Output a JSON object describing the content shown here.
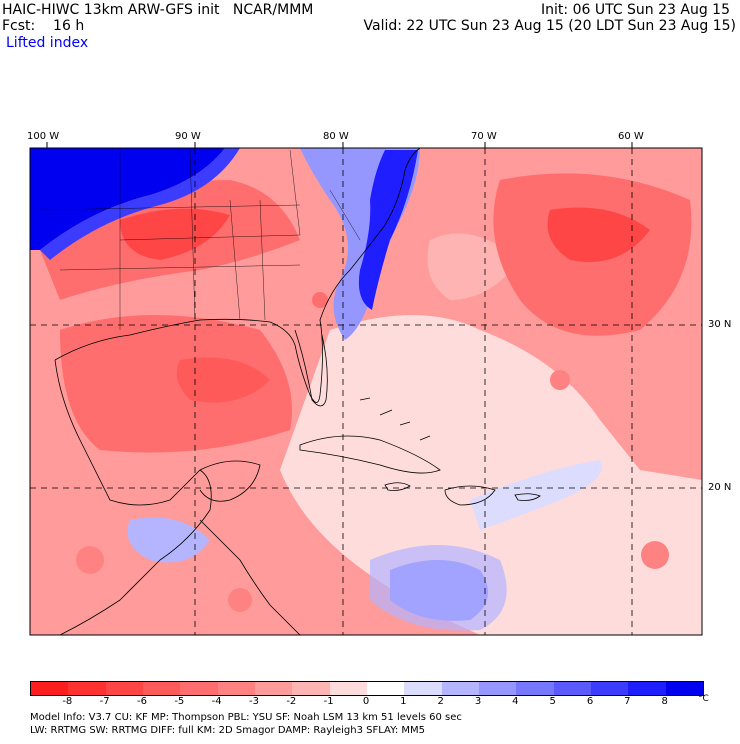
{
  "header": {
    "line1_left": "HAIC-HIWC 13km ARW-GFS init   NCAR/MMM",
    "line1_right": "Init: 06 UTC Sun 23 Aug 15",
    "line2_left": "Fcst:    16 h",
    "line2_right": "Valid: 22 UTC Sun 23 Aug 15 (20 LDT Sun 23 Aug 15)",
    "field_name": "Lifted index"
  },
  "map": {
    "lon_labels": [
      "100 W",
      "90 W",
      "80 W",
      "70 W",
      "60 W"
    ],
    "lat_labels": [
      "30 N",
      "20 N"
    ]
  },
  "colorbar": {
    "ticks": [
      "-8",
      "-7",
      "-6",
      "-5",
      "-4",
      "-3",
      "-2",
      "-1",
      "0",
      "1",
      "2",
      "3",
      "4",
      "5",
      "6",
      "7",
      "8"
    ],
    "units": "°C",
    "colors": [
      "#ff1e1e",
      "#ff3232",
      "#ff4646",
      "#ff5a5a",
      "#ff6e6e",
      "#ff8282",
      "#ff9b9b",
      "#ffb4b4",
      "#ffdcdc",
      "#ffffff",
      "#dcdcff",
      "#b4b4ff",
      "#9696ff",
      "#7878ff",
      "#5a5aff",
      "#3c3cff",
      "#1e1eff",
      "#0000f0"
    ]
  },
  "footer": {
    "line1": "Model Info: V3.7       CU: KF       MP: Thompson      PBL: YSU       SF: Noah LSM      13 km    51 levels    60 sec",
    "line2": "                        LW: RRTMG    SW: RRTMG   DIFF: full    KM: 2D Smagor  DAMP: Rayleigh3   SFLAY: MM5"
  }
}
